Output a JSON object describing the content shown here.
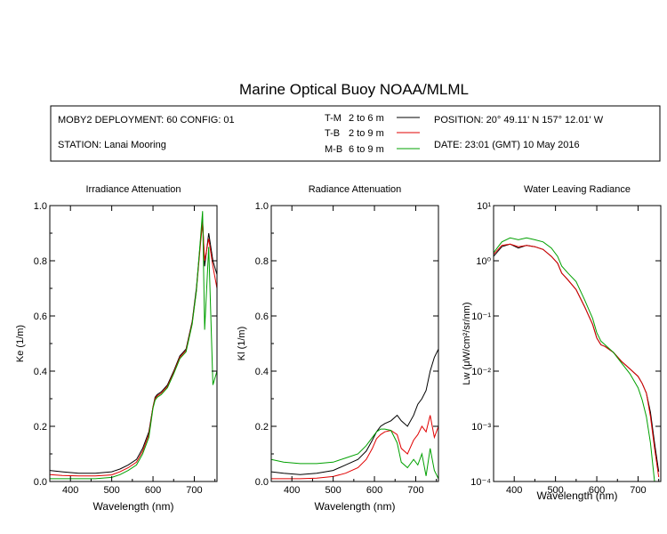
{
  "title": "Marine Optical Buoy NOAA/MLML",
  "info": {
    "deployment": "MOBY2 DEPLOYMENT: 60 CONFIG: 01",
    "station": "STATION: Lanai Mooring",
    "position": "POSITION: 20° 49.11' N   157° 12.01' W",
    "date": "DATE: 23:01 (GMT) 10 May 2016"
  },
  "legend": [
    {
      "tag": "T-M",
      "range": "2 to 6  m",
      "color": "#000000"
    },
    {
      "tag": "T-B",
      "range": "2 to 9  m",
      "color": "#e00000"
    },
    {
      "tag": "M-B",
      "range": "6 to 9  m",
      "color": "#00a000"
    }
  ],
  "chart_data": [
    {
      "type": "line",
      "title": "Irradiance Attenuation",
      "xlabel": "Wavelength (nm)",
      "ylabel": "Ke  (1/m)",
      "xlim": [
        350,
        755
      ],
      "ylim": [
        0,
        1.0
      ],
      "xticks": [
        "400",
        "500",
        "600",
        "700"
      ],
      "yticks": [
        "0.0",
        "0.2",
        "0.4",
        "0.6",
        "0.8",
        "1.0"
      ],
      "x": [
        350,
        380,
        420,
        460,
        500,
        520,
        540,
        560,
        575,
        590,
        600,
        605,
        610,
        620,
        635,
        650,
        665,
        680,
        695,
        705,
        715,
        720,
        725,
        735,
        745,
        755
      ],
      "series": [
        {
          "name": "T-M",
          "color": "#000000",
          "values": [
            0.04,
            0.035,
            0.03,
            0.03,
            0.035,
            0.045,
            0.06,
            0.08,
            0.12,
            0.18,
            0.27,
            0.305,
            0.315,
            0.325,
            0.35,
            0.4,
            0.455,
            0.48,
            0.58,
            0.7,
            0.87,
            0.95,
            0.78,
            0.9,
            0.8,
            0.75
          ]
        },
        {
          "name": "T-B",
          "color": "#e00000",
          "values": [
            0.025,
            0.022,
            0.02,
            0.02,
            0.024,
            0.035,
            0.05,
            0.07,
            0.11,
            0.17,
            0.27,
            0.3,
            0.31,
            0.32,
            0.345,
            0.395,
            0.45,
            0.475,
            0.575,
            0.69,
            0.86,
            0.94,
            0.8,
            0.88,
            0.78,
            0.7
          ]
        },
        {
          "name": "M-B",
          "color": "#00a000",
          "values": [
            0.01,
            0.01,
            0.01,
            0.01,
            0.015,
            0.025,
            0.04,
            0.06,
            0.1,
            0.16,
            0.265,
            0.295,
            0.305,
            0.315,
            0.34,
            0.39,
            0.445,
            0.47,
            0.57,
            0.69,
            0.88,
            0.98,
            0.55,
            0.85,
            0.35,
            0.4
          ]
        }
      ]
    },
    {
      "type": "line",
      "title": "Radiance Attenuation",
      "xlabel": "Wavelength (nm)",
      "ylabel": "Kl  (1/m)",
      "xlim": [
        350,
        755
      ],
      "ylim": [
        0,
        1.0
      ],
      "xticks": [
        "400",
        "500",
        "600",
        "700"
      ],
      "yticks": [
        "0.0",
        "0.2",
        "0.4",
        "0.6",
        "0.8",
        "1.0"
      ],
      "x": [
        350,
        380,
        420,
        460,
        500,
        530,
        560,
        580,
        595,
        605,
        615,
        625,
        640,
        655,
        665,
        680,
        695,
        705,
        715,
        725,
        735,
        745,
        755
      ],
      "series": [
        {
          "name": "T-M",
          "color": "#000000",
          "values": [
            0.035,
            0.03,
            0.025,
            0.03,
            0.04,
            0.06,
            0.08,
            0.11,
            0.15,
            0.18,
            0.2,
            0.21,
            0.22,
            0.24,
            0.22,
            0.2,
            0.24,
            0.28,
            0.3,
            0.33,
            0.4,
            0.45,
            0.48
          ]
        },
        {
          "name": "T-B",
          "color": "#e00000",
          "values": [
            0.01,
            0.01,
            0.01,
            0.012,
            0.018,
            0.03,
            0.05,
            0.08,
            0.12,
            0.155,
            0.17,
            0.18,
            0.185,
            0.17,
            0.12,
            0.1,
            0.15,
            0.17,
            0.2,
            0.18,
            0.24,
            0.16,
            0.2
          ]
        },
        {
          "name": "M-B",
          "color": "#00a000",
          "values": [
            0.08,
            0.07,
            0.065,
            0.065,
            0.07,
            0.085,
            0.1,
            0.13,
            0.16,
            0.18,
            0.19,
            0.19,
            0.185,
            0.14,
            0.07,
            0.05,
            0.08,
            0.06,
            0.1,
            0.02,
            0.12,
            0.04,
            0.01
          ]
        }
      ]
    },
    {
      "type": "line",
      "title": "Water Leaving Radiance",
      "xlabel": "Wavelength (nm)",
      "ylabel": "Lw  (μW/cm²/sr/nm)",
      "yscale": "log",
      "xlim": [
        350,
        755
      ],
      "ylim": [
        0.0001,
        10
      ],
      "xticks": [
        "400",
        "500",
        "600",
        "700"
      ],
      "yticks": [
        "10⁻⁴",
        "10⁻³",
        "10⁻²",
        "10⁻¹",
        "10⁰",
        "10¹"
      ],
      "x": [
        350,
        370,
        390,
        410,
        430,
        450,
        470,
        490,
        505,
        515,
        530,
        550,
        570,
        590,
        600,
        610,
        620,
        640,
        660,
        680,
        700,
        710,
        720,
        730,
        740,
        750
      ],
      "series": [
        {
          "name": "T-M",
          "color": "#000000",
          "values": [
            1.2,
            1.8,
            2.0,
            1.7,
            1.9,
            1.8,
            1.6,
            1.2,
            0.9,
            0.6,
            0.45,
            0.3,
            0.15,
            0.07,
            0.04,
            0.03,
            0.028,
            0.022,
            0.015,
            0.011,
            0.008,
            0.006,
            0.004,
            0.0018,
            0.0005,
            0.00015
          ]
        },
        {
          "name": "T-B",
          "color": "#e00000",
          "values": [
            1.3,
            1.9,
            2.0,
            1.8,
            1.9,
            1.8,
            1.6,
            1.2,
            0.9,
            0.6,
            0.45,
            0.3,
            0.15,
            0.07,
            0.04,
            0.03,
            0.028,
            0.022,
            0.015,
            0.011,
            0.008,
            0.006,
            0.004,
            0.0015,
            0.0004,
            0.00012
          ]
        },
        {
          "name": "M-B",
          "color": "#00a000",
          "values": [
            1.4,
            2.2,
            2.6,
            2.4,
            2.6,
            2.4,
            2.2,
            1.7,
            1.2,
            0.8,
            0.6,
            0.42,
            0.2,
            0.09,
            0.05,
            0.035,
            0.03,
            0.022,
            0.014,
            0.009,
            0.005,
            0.003,
            0.0015,
            0.0005,
            0.0001,
            0.0001
          ]
        }
      ]
    }
  ]
}
